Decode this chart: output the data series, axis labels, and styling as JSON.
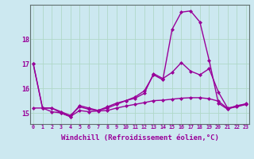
{
  "background_color": "#cce8f0",
  "grid_color": "#b0d8c8",
  "line_color": "#990099",
  "marker": "D",
  "marker_size": 2,
  "linewidth": 1.0,
  "xlabel": "Windchill (Refroidissement éolien,°C)",
  "xlabel_fontsize": 6.5,
  "xtick_labels": [
    "0",
    "1",
    "2",
    "3",
    "4",
    "5",
    "6",
    "7",
    "8",
    "9",
    "10",
    "11",
    "12",
    "13",
    "14",
    "15",
    "16",
    "17",
    "18",
    "19",
    "20",
    "21",
    "22",
    "23"
  ],
  "ytick_labels": [
    "15",
    "16",
    "17",
    "18"
  ],
  "ylim": [
    14.55,
    19.4
  ],
  "xlim": [
    -0.3,
    23.3
  ],
  "s1": [
    17.0,
    15.2,
    15.2,
    15.0,
    14.85,
    15.3,
    15.2,
    15.1,
    15.25,
    15.4,
    15.5,
    15.65,
    15.9,
    16.55,
    16.35,
    18.4,
    19.1,
    19.15,
    18.7,
    17.15,
    15.4,
    15.15,
    15.3,
    15.35
  ],
  "s2": [
    17.0,
    15.2,
    15.2,
    15.05,
    14.9,
    15.25,
    15.15,
    15.1,
    15.2,
    15.35,
    15.5,
    15.6,
    15.8,
    16.6,
    16.4,
    16.65,
    17.05,
    16.7,
    16.55,
    16.8,
    15.85,
    15.2,
    15.28,
    15.38
  ],
  "s3": [
    15.2,
    15.2,
    15.05,
    15.0,
    14.85,
    15.1,
    15.05,
    15.08,
    15.1,
    15.2,
    15.28,
    15.35,
    15.42,
    15.5,
    15.52,
    15.56,
    15.6,
    15.62,
    15.62,
    15.58,
    15.48,
    15.18,
    15.25,
    15.35
  ],
  "s4": [
    15.2,
    15.2,
    15.05,
    15.0,
    14.85,
    15.1,
    15.05,
    15.08,
    15.1,
    15.2,
    15.28,
    15.35,
    15.42,
    15.5,
    15.52,
    15.56,
    15.6,
    15.62,
    15.62,
    15.58,
    15.48,
    15.18,
    15.25,
    15.35
  ]
}
